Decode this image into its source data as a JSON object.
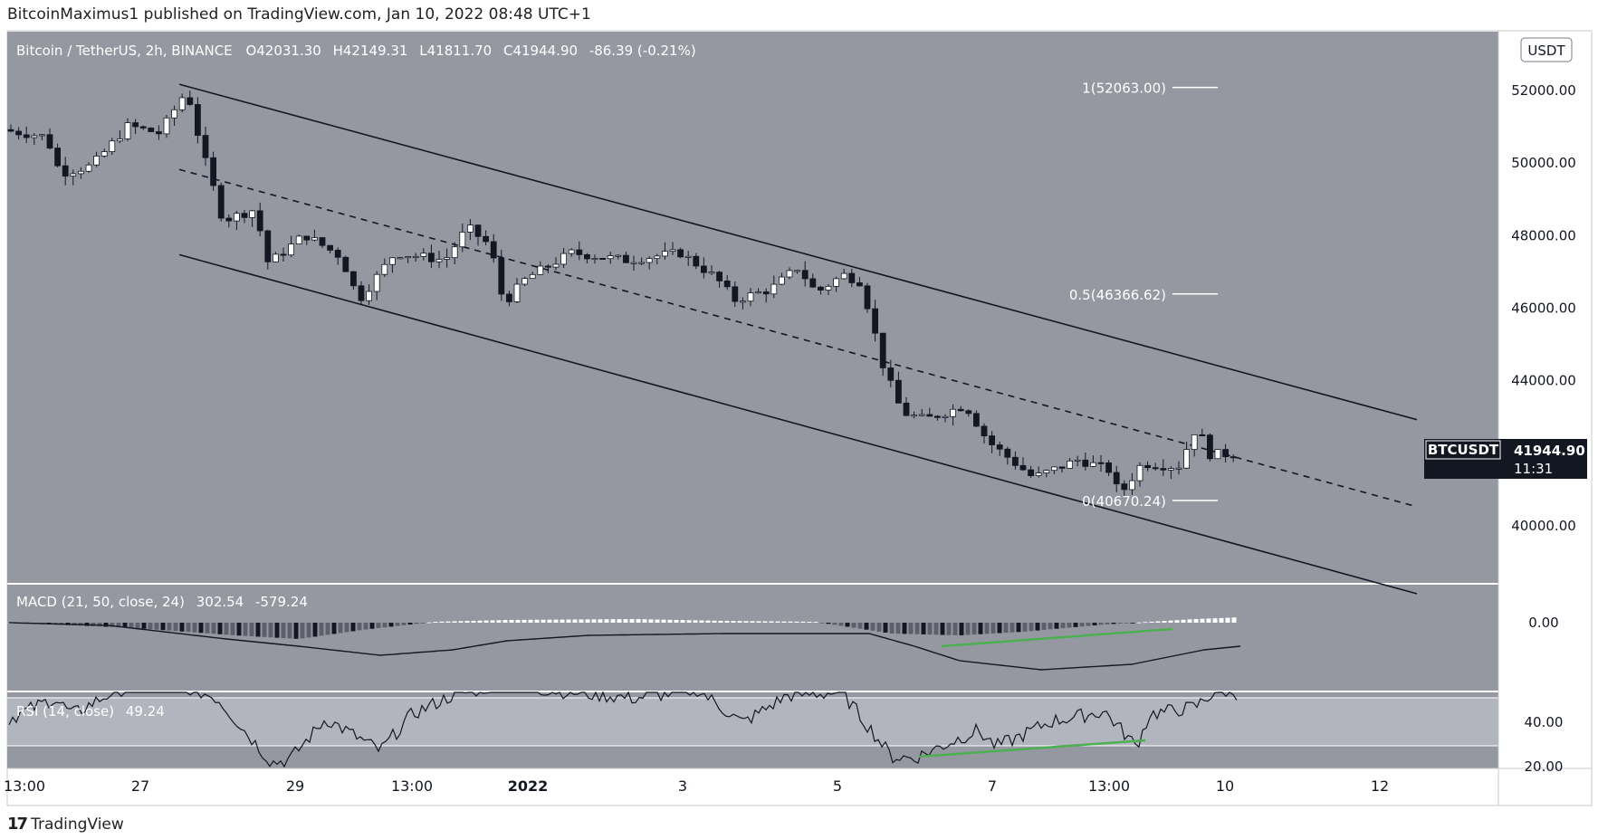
{
  "header": {
    "publisher_line": "BitcoinMaximus1 published on TradingView.com, Jan 10, 2022 08:48 UTC+1"
  },
  "footer": {
    "logo_text": "TradingView",
    "logo_icon": "tradingview-logo-icon"
  },
  "legend": {
    "symbol": "Bitcoin / TetherUS, 2h, BINANCE",
    "open_label": "O",
    "open": "42031.30",
    "high_label": "H",
    "high": "42149.31",
    "low_label": "L",
    "low": "41811.70",
    "close_label": "C",
    "close": "41944.90",
    "change": "-86.39 (-0.21%)"
  },
  "currency_badge": "USDT",
  "price_tag": {
    "symbol": "BTCUSDT",
    "price": "41944.90",
    "countdown": "11:31"
  },
  "colors": {
    "pane_bg": "#9598a1",
    "rsi_band": "#b2b5be",
    "divergence": "#4caf50",
    "axis_bg": "#ffffff"
  },
  "chart_data": [
    {
      "type": "candlestick",
      "pane": "price",
      "y_ticks": [
        "52000.00",
        "50000.00",
        "48000.00",
        "46000.00",
        "44000.00",
        "40000.00"
      ],
      "x_ticks": [
        "13:00",
        "27",
        "29",
        "13:00",
        "2022",
        "3",
        "5",
        "7",
        "13:00",
        "10",
        "12"
      ],
      "ylim": [
        38400,
        53600
      ],
      "fib_levels": [
        {
          "label": "1(52063.00)",
          "value": 52063.0
        },
        {
          "label": "0.5(46366.62)",
          "value": 46366.62
        },
        {
          "label": "0(40670.24)",
          "value": 40670.24
        }
      ],
      "channel": {
        "upper": [
          [
            0,
            52150
          ],
          [
            1,
            42900
          ]
        ],
        "middle": [
          [
            0,
            49800
          ],
          [
            1,
            40500
          ]
        ],
        "lower": [
          [
            0,
            47450
          ],
          [
            1,
            38100
          ]
        ]
      },
      "last_price": 41944.9
    },
    {
      "type": "histogram+line",
      "pane": "MACD",
      "label": "MACD (21, 50, close, 24)",
      "values_shown": [
        "302.54",
        "-579.24"
      ],
      "y_ticks": [
        "0.00"
      ],
      "annotation": "bullish divergence"
    },
    {
      "type": "line",
      "pane": "RSI",
      "label": "RSI (14, close)",
      "value_shown": "49.24",
      "y_ticks": [
        "40.00",
        "20.00"
      ],
      "ylim": [
        18,
        70
      ],
      "band": [
        30,
        70
      ],
      "annotation": "bullish divergence"
    }
  ]
}
